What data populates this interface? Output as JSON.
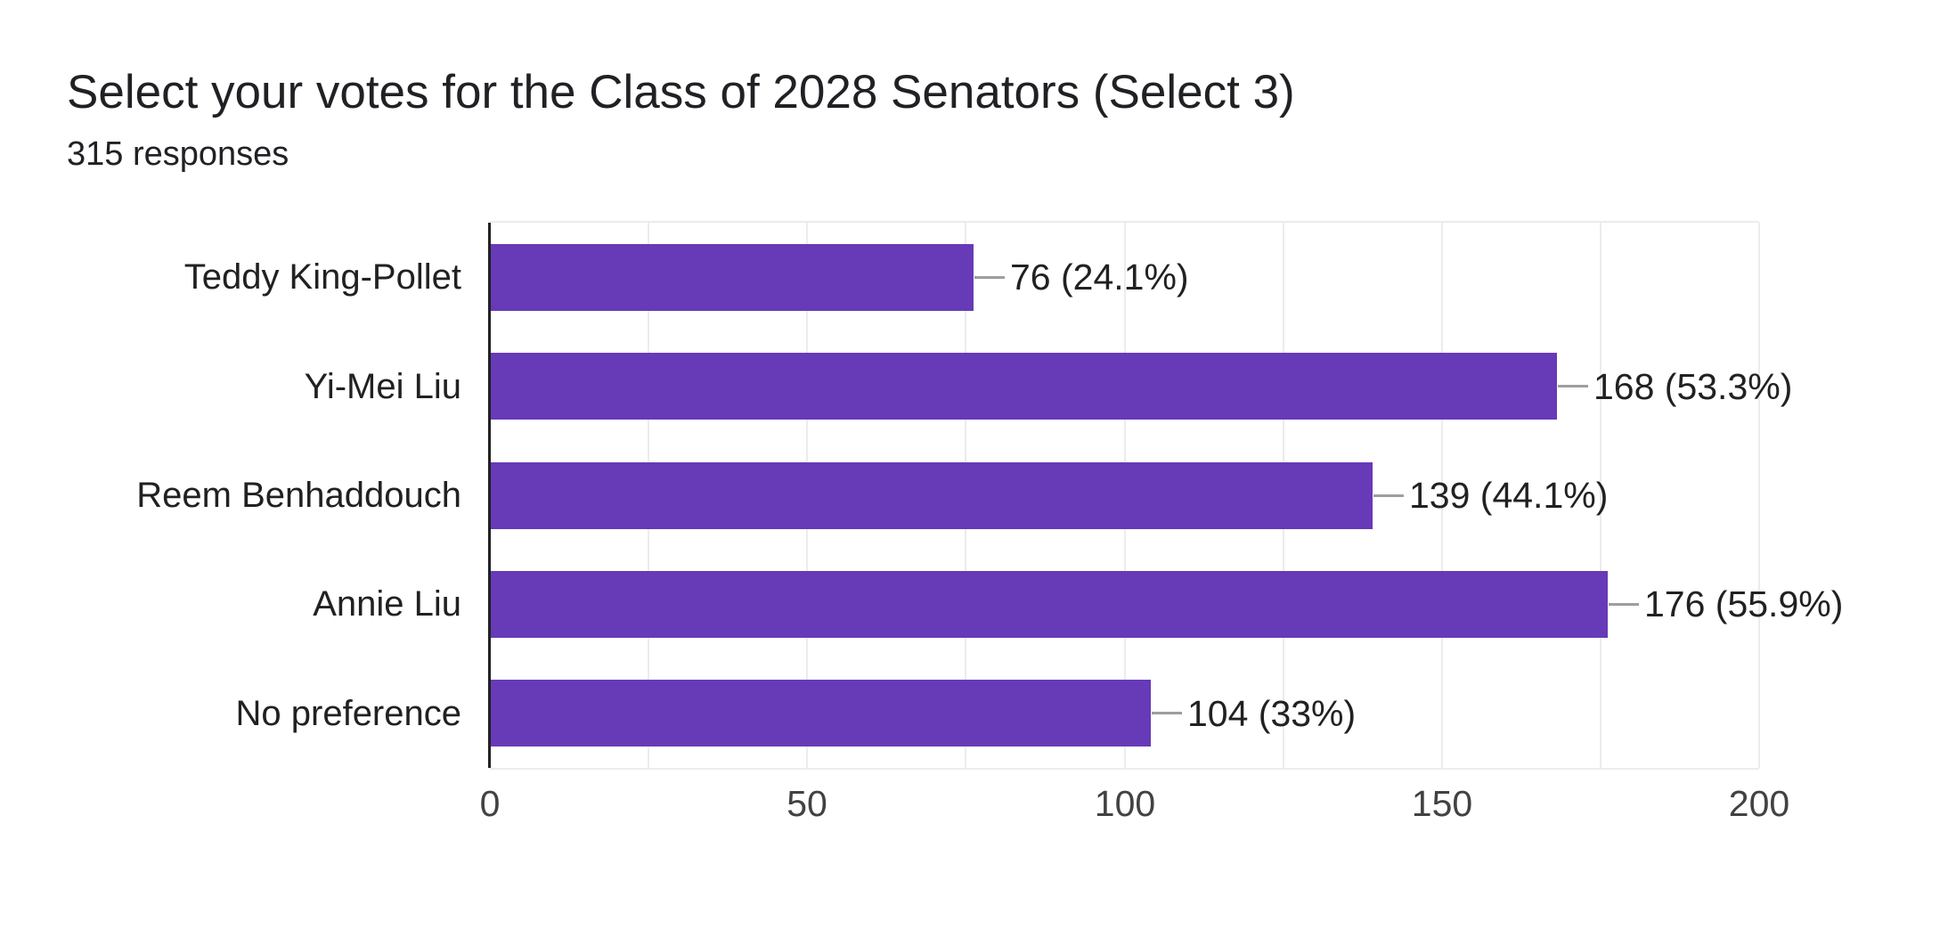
{
  "chart_data": {
    "type": "bar",
    "orientation": "horizontal",
    "title": "Select your votes for the Class of 2028 Senators (Select 3)",
    "subtitle": "315 responses",
    "categories": [
      "Teddy King-Pollet",
      "Yi-Mei Liu",
      "Reem Benhaddouch",
      "Annie Liu",
      "No preference"
    ],
    "values": [
      76,
      168,
      139,
      176,
      104
    ],
    "value_labels": [
      "76 (24.1%)",
      "168 (53.3%)",
      "139 (44.1%)",
      "176 (55.9%)",
      "104 (33%)"
    ],
    "x_ticks": [
      "0",
      "50",
      "100",
      "150",
      "200"
    ],
    "x_tick_values": [
      0,
      50,
      100,
      150,
      200
    ],
    "xlim": [
      0,
      200
    ],
    "minor_gridline_step": 25,
    "grid_on": true,
    "legend_position": "none",
    "xlabel": "",
    "ylabel": "",
    "colors": {
      "bar": "#673ab7",
      "gridline": "#ececec",
      "axis": "#212121",
      "callout": "#9e9e9e",
      "title_text": "#202124",
      "label_text": "#212121",
      "tick_text": "#424242",
      "background": "#ffffff"
    }
  }
}
